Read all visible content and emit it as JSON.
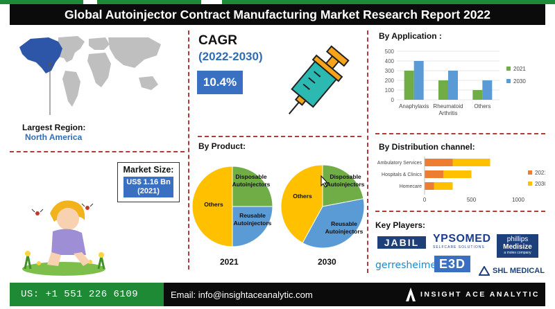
{
  "header": {
    "title": "Global Autoinjector Contract Manufacturing Market Research Report 2022"
  },
  "colors": {
    "accent_blue": "#3a70c2",
    "series_2021": "#70ad47",
    "series_2030": "#5b9bd5",
    "dist_2021": "#ed7d31",
    "dist_2030": "#ffc000",
    "divider": "#b23a3a",
    "footer_green": "#1e8a35"
  },
  "region": {
    "label": "Largest Region:",
    "value": "North America"
  },
  "cagr": {
    "title": "CAGR",
    "years": "(2022-2030)",
    "value": "10.4%"
  },
  "market_size": {
    "label": "Market Size:",
    "value_line1": "US$ 1.16 Bn",
    "value_line2": "(2021)"
  },
  "sections": {
    "by_application": "By Application :",
    "by_product": "By Product:",
    "by_distribution": "By Distribution channel:",
    "key_players": "Key Players:"
  },
  "chart_data": [
    {
      "type": "bar",
      "title": "By Application :",
      "categories": [
        "Anaphylaxis",
        "Rheumatoid Arthritis",
        "Others"
      ],
      "category_lines": [
        [
          "Anaphylaxis"
        ],
        [
          "Rheumatoid",
          "Arthritis"
        ],
        [
          "Others"
        ]
      ],
      "series": [
        {
          "name": "2021",
          "values": [
            300,
            200,
            100
          ]
        },
        {
          "name": "2030",
          "values": [
            400,
            300,
            200
          ]
        }
      ],
      "ylim": [
        0,
        500
      ],
      "yticks": [
        "0",
        "100",
        "200",
        "300",
        "400",
        "500"
      ],
      "grid": true,
      "legend": "right"
    },
    {
      "type": "bar",
      "orientation": "horizontal",
      "stacked": true,
      "title": "By Distribution channel:",
      "categories": [
        "Ambulatory Services",
        "Hospitals & Clinics",
        "Homecare"
      ],
      "series": [
        {
          "name": "2021",
          "values": [
            300,
            200,
            100
          ]
        },
        {
          "name": "2030",
          "values": [
            400,
            300,
            200
          ]
        }
      ],
      "xlim": [
        0,
        1000
      ],
      "xticks": [
        "0",
        "500",
        "1000"
      ],
      "legend": "right"
    },
    {
      "type": "pie",
      "title": "2021",
      "labels": [
        "Disposable Autoinjectors",
        "Reusable Autoinjectors",
        "Others"
      ],
      "label_lines": [
        [
          "Disposable",
          "Autoinjectors"
        ],
        [
          "Reusable",
          "Autoinjectors"
        ],
        [
          "Others"
        ]
      ],
      "values": [
        25,
        25,
        50
      ]
    },
    {
      "type": "pie",
      "title": "2030",
      "labels": [
        "Disposable Autoinjectors",
        "Reusable Autoinjectors",
        "Others"
      ],
      "label_lines": [
        [
          "Disposable",
          "Autoinjectors"
        ],
        [
          "Reusable",
          "Autoinjectors"
        ],
        [
          "Others"
        ]
      ],
      "values": [
        22,
        36,
        42
      ]
    }
  ],
  "key_players": {
    "jabil": "JABIL",
    "ypsomed": "YPSOMED",
    "ypsomed_tag": "SELFCARE SOLUTIONS",
    "phillips_line1": "phillips",
    "phillips_line2": "Medisize",
    "phillips_line3": "a molex company",
    "gerresheimer": "gerresheimer",
    "e3d": "E3D",
    "shl": "SHL MEDICAL"
  },
  "footer": {
    "phone": "US: +1 551 226 6109",
    "email": "Email: info@insightaceanalytic.com",
    "brand": "INSIGHT ACE ANALYTIC"
  }
}
